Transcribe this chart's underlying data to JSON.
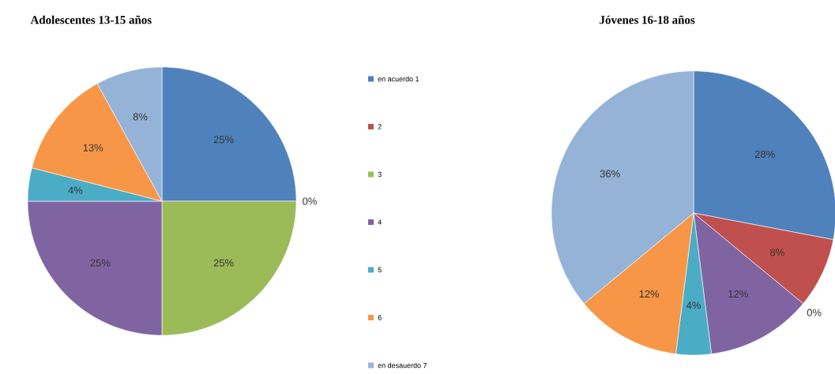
{
  "chart_data": [
    {
      "type": "pie",
      "title": "Adolescentes 13-15 años",
      "categories": [
        "en acuerdo 1",
        "2",
        "3",
        "4",
        "5",
        "6",
        "en desauerdo 7"
      ],
      "values": [
        25,
        0,
        25,
        25,
        4,
        13,
        8
      ],
      "value_labels": [
        "25%",
        "0%",
        "25%",
        "25%",
        "4%",
        "13%",
        "8%"
      ],
      "colors": [
        "#4f81bd",
        "#c0504d",
        "#9bbb59",
        "#8064a2",
        "#4bacc6",
        "#f79646",
        "#95b3d7"
      ],
      "legend": "right"
    },
    {
      "type": "pie",
      "title": "Jóvenes 16-18 años",
      "categories": [
        null,
        null,
        null,
        null,
        null,
        null,
        null
      ],
      "values": [
        28,
        8,
        0,
        12,
        4,
        12,
        36
      ],
      "value_labels": [
        "28%",
        "8%",
        "0%",
        "12%",
        "4%",
        "12%",
        "36%"
      ],
      "colors": [
        "#4f81bd",
        "#c0504d",
        "#9bbb59",
        "#8064a2",
        "#4bacc6",
        "#f79646",
        "#95b3d7"
      ]
    }
  ]
}
